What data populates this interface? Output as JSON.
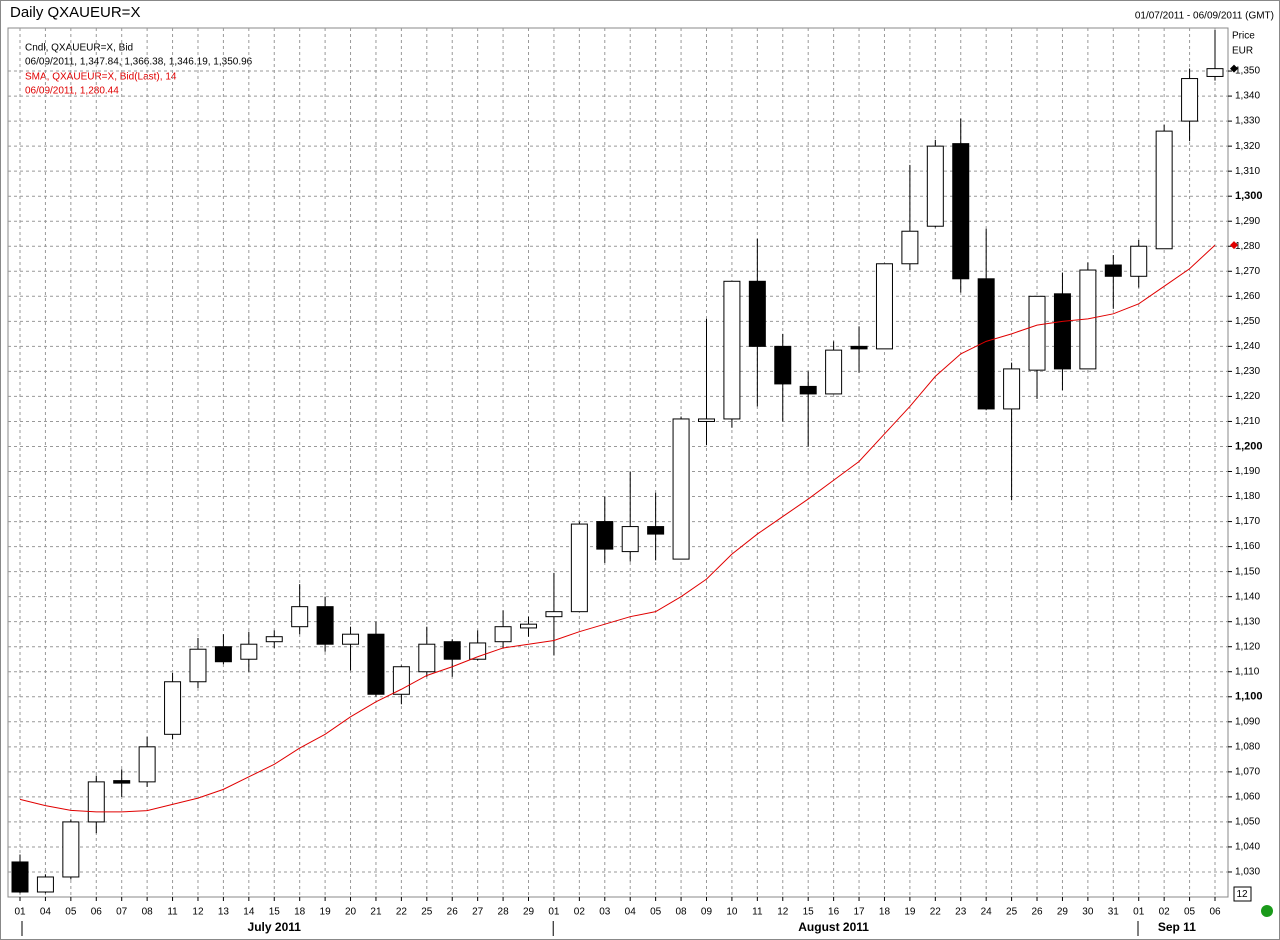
{
  "chart_data": {
    "type": "candlestick",
    "title": "Daily QXAUEUR=X",
    "date_range": "01/07/2011 - 06/09/2011 (GMT)",
    "y_label": "Price",
    "y_unit": "EUR",
    "corner_label": "12",
    "categories": [
      "01",
      "04",
      "05",
      "06",
      "07",
      "08",
      "11",
      "12",
      "13",
      "14",
      "15",
      "18",
      "19",
      "20",
      "21",
      "22",
      "25",
      "26",
      "27",
      "28",
      "29",
      "01",
      "02",
      "03",
      "04",
      "05",
      "08",
      "09",
      "10",
      "11",
      "12",
      "15",
      "16",
      "17",
      "18",
      "19",
      "22",
      "23",
      "24",
      "25",
      "26",
      "29",
      "30",
      "31",
      "01",
      "02",
      "05",
      "06"
    ],
    "months": [
      "July 2011",
      "August 2011",
      "Sep 11"
    ],
    "series": [
      {
        "name": "Cndl, QXAUEUR=X, Bid",
        "last_label": "06/09/2011, 1,347.84, 1,366.38, 1,346.19, 1,350.96",
        "color": "#000000",
        "open": [
          1034,
          1022,
          1028,
          1050,
          1066.5,
          1066,
          1085,
          1106,
          1120,
          1115,
          1122,
          1128,
          1136,
          1121,
          1125,
          1101,
          1110,
          1122,
          1115,
          1122,
          1127.5,
          1132,
          1134,
          1170,
          1158,
          1168,
          1155,
          1210,
          1211,
          1266,
          1240,
          1224,
          1221,
          1240,
          1239,
          1273,
          1288,
          1321,
          1267,
          1215,
          1230.5,
          1261,
          1231,
          1272.5,
          1268,
          1279,
          1330,
          1347.84
        ],
        "high": [
          1037,
          1029,
          1051,
          1068.5,
          1071,
          1084,
          1109.5,
          1123.5,
          1125,
          1126,
          1126.5,
          1145,
          1140,
          1128,
          1130,
          1112.5,
          1128,
          1123,
          1126.5,
          1134.5,
          1132,
          1149.5,
          1170,
          1180,
          1190,
          1181.5,
          1212,
          1251,
          1266,
          1283,
          1245,
          1230,
          1242,
          1248,
          1273,
          1312.5,
          1322.5,
          1331,
          1287,
          1233.5,
          1260,
          1269.5,
          1273.5,
          1276.5,
          1282.5,
          1328.5,
          1351,
          1366.38
        ],
        "low": [
          1021.5,
          1021.5,
          1027,
          1045.5,
          1060,
          1064,
          1083,
          1103.5,
          1113,
          1110,
          1119.5,
          1125,
          1118,
          1110.5,
          1100,
          1097,
          1108,
          1108,
          1114.5,
          1119.5,
          1124,
          1116.5,
          1134,
          1153.5,
          1154,
          1154.5,
          1155,
          1200.5,
          1207.5,
          1216,
          1210,
          1200,
          1221,
          1229.5,
          1239,
          1270.5,
          1287.5,
          1261.5,
          1214.5,
          1178.5,
          1219,
          1222.5,
          1231,
          1255,
          1263.5,
          1279,
          1322,
          1346.19
        ],
        "close": [
          1022,
          1028,
          1050,
          1066,
          1065.5,
          1080,
          1106,
          1119,
          1114,
          1121,
          1124,
          1136,
          1121,
          1125,
          1101,
          1112,
          1121,
          1115,
          1121.5,
          1128,
          1129,
          1134,
          1169,
          1159,
          1168,
          1165,
          1211,
          1211,
          1266,
          1240,
          1225,
          1221,
          1238.5,
          1239,
          1273,
          1286,
          1320,
          1267,
          1215,
          1231,
          1260,
          1231,
          1270.5,
          1268,
          1280,
          1326,
          1347,
          1350.96
        ]
      },
      {
        "name": "SMA, QXAUEUR=X, Bid(Last), 14",
        "last_label": "06/09/2011, 1,280.44",
        "color": "#e00000",
        "values": [
          1059,
          1056.5,
          1054.6,
          1054,
          1054,
          1054.5,
          1057,
          1059.5,
          1063,
          1068,
          1073,
          1079.5,
          1085,
          1092,
          1098,
          1103,
          1108.5,
          1112,
          1116,
          1119.5,
          1121,
          1122.5,
          1126,
          1129,
          1132,
          1134,
          1140,
          1147,
          1157,
          1165,
          1172,
          1179,
          1186.5,
          1194,
          1205,
          1216,
          1228,
          1237,
          1242,
          1245,
          1248.5,
          1250,
          1251,
          1253,
          1257,
          1264,
          1271,
          1280.44
        ]
      }
    ],
    "ylim": [
      1020,
      1367.2
    ],
    "yticks": [
      {
        "value": 1030,
        "label": "1,030"
      },
      {
        "value": 1040,
        "label": "1,040"
      },
      {
        "value": 1050,
        "label": "1,050"
      },
      {
        "value": 1060,
        "label": "1,060"
      },
      {
        "value": 1070,
        "label": "1,070"
      },
      {
        "value": 1080,
        "label": "1,080"
      },
      {
        "value": 1090,
        "label": "1,090"
      },
      {
        "value": 1100,
        "label": "1,100"
      },
      {
        "value": 1110,
        "label": "1,110"
      },
      {
        "value": 1120,
        "label": "1,120"
      },
      {
        "value": 1130,
        "label": "1,130"
      },
      {
        "value": 1140,
        "label": "1,140"
      },
      {
        "value": 1150,
        "label": "1,150"
      },
      {
        "value": 1160,
        "label": "1,160"
      },
      {
        "value": 1170,
        "label": "1,170"
      },
      {
        "value": 1180,
        "label": "1,180"
      },
      {
        "value": 1190,
        "label": "1,190"
      },
      {
        "value": 1200,
        "label": "1,200"
      },
      {
        "value": 1210,
        "label": "1,210"
      },
      {
        "value": 1220,
        "label": "1,220"
      },
      {
        "value": 1230,
        "label": "1,230"
      },
      {
        "value": 1240,
        "label": "1,240"
      },
      {
        "value": 1250,
        "label": "1,250"
      },
      {
        "value": 1260,
        "label": "1,260"
      },
      {
        "value": 1270,
        "label": "1,270"
      },
      {
        "value": 1280,
        "label": "1,280"
      },
      {
        "value": 1290,
        "label": "1,290"
      },
      {
        "value": 1300,
        "label": "1,300"
      },
      {
        "value": 1310,
        "label": "1,310"
      },
      {
        "value": 1320,
        "label": "1,320"
      },
      {
        "value": 1330,
        "label": "1,330"
      },
      {
        "value": 1340,
        "label": "1,340"
      },
      {
        "value": 1350,
        "label": "1,350"
      }
    ],
    "grid": true
  }
}
